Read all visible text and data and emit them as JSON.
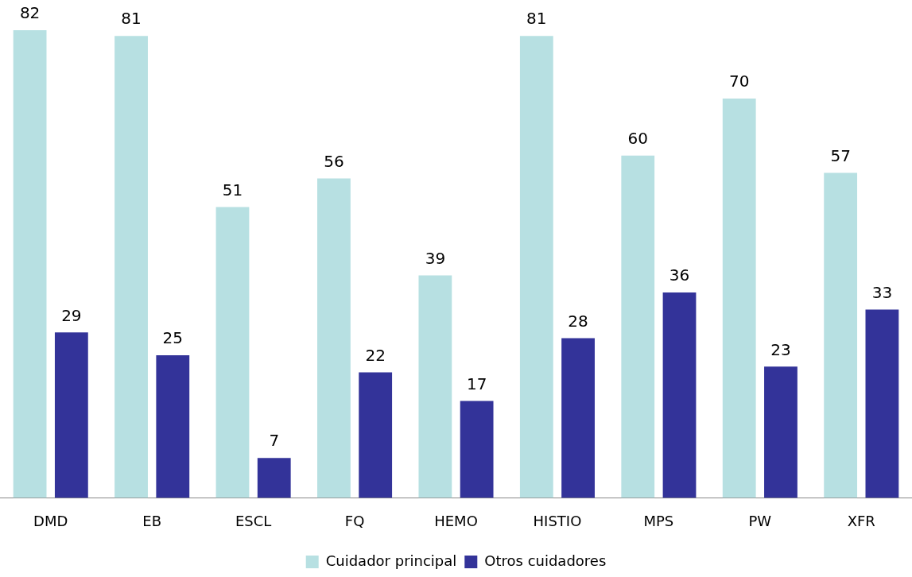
{
  "chart_data": {
    "type": "bar",
    "categories": [
      "DMD",
      "EB",
      "ESCL",
      "FQ",
      "HEMO",
      "HISTIO",
      "MPS",
      "PW",
      "XFR"
    ],
    "series": [
      {
        "name": "Cuidador principal",
        "color": "#b7e0e2",
        "values": [
          82,
          81,
          51,
          56,
          39,
          81,
          60,
          70,
          57
        ]
      },
      {
        "name": "Otros cuidadores",
        "color": "#333399",
        "values": [
          29,
          25,
          7,
          22,
          17,
          28,
          36,
          23,
          33
        ]
      }
    ],
    "data_labels": true,
    "legend": "bottom",
    "grid": false
  }
}
